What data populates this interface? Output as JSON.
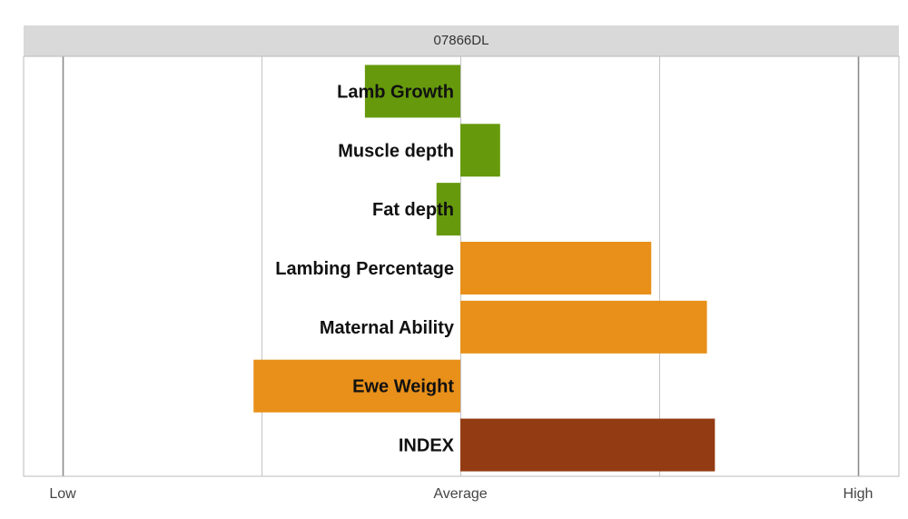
{
  "chart_data": {
    "type": "bar",
    "orientation": "horizontal",
    "title": "07866DL",
    "categories": [
      "Lamb Growth",
      "Muscle depth",
      "Fat depth",
      "Lambing Percentage",
      "Maternal Ability",
      "Ewe Weight",
      "INDEX"
    ],
    "values": [
      -0.24,
      0.1,
      -0.06,
      0.48,
      0.62,
      -0.52,
      0.64
    ],
    "colors": [
      "#669a0c",
      "#669a0c",
      "#669a0c",
      "#e8901a",
      "#e8901a",
      "#e8901a",
      "#933b12"
    ],
    "xlim": [
      -1,
      1
    ],
    "x_ticks": [
      -1,
      -0.5,
      0,
      0.5,
      1
    ],
    "x_tick_labels": [
      {
        "value": -1,
        "label": "Low"
      },
      {
        "value": 0,
        "label": "Average"
      },
      {
        "value": 1,
        "label": "High"
      }
    ],
    "grid": true,
    "legend": "none"
  }
}
